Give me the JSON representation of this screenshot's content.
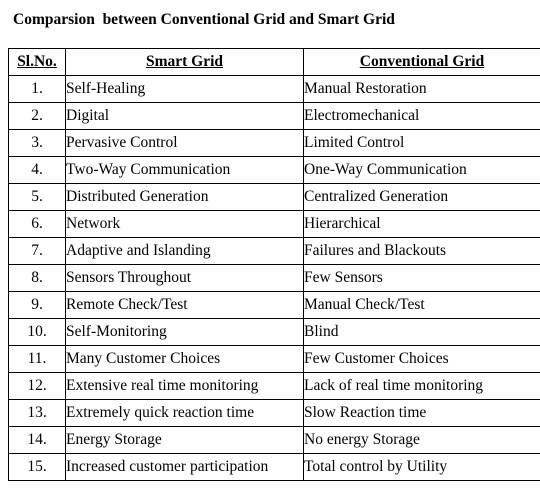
{
  "title": "Comparsion  between Conventional Grid and Smart Grid",
  "table": {
    "headers": [
      "Sl.No.",
      "Smart Grid",
      "Conventional Grid"
    ],
    "rows": [
      [
        "1.",
        "Self-Healing",
        "Manual Restoration"
      ],
      [
        "2.",
        "Digital",
        "Electromechanical"
      ],
      [
        "3.",
        "Pervasive Control",
        "Limited Control"
      ],
      [
        "4.",
        "Two-Way Communication",
        "One-Way Communication"
      ],
      [
        "5.",
        "Distributed Generation",
        "Centralized Generation"
      ],
      [
        "6.",
        "Network",
        "Hierarchical"
      ],
      [
        "7.",
        "Adaptive and Islanding",
        "Failures and Blackouts"
      ],
      [
        "8.",
        "Sensors Throughout",
        "Few Sensors"
      ],
      [
        "9.",
        "Remote Check/Test",
        "Manual Check/Test"
      ],
      [
        "10.",
        "Self-Monitoring",
        "Blind"
      ],
      [
        "11.",
        "Many Customer Choices",
        "Few Customer Choices"
      ],
      [
        "12.",
        "Extensive real time monitoring",
        "Lack of real time monitoring"
      ],
      [
        "13.",
        "Extremely quick reaction time",
        "Slow Reaction time"
      ],
      [
        "14.",
        "Energy Storage",
        "No energy Storage"
      ],
      [
        "15.",
        "Increased customer participation",
        "Total control by Utility"
      ]
    ]
  }
}
